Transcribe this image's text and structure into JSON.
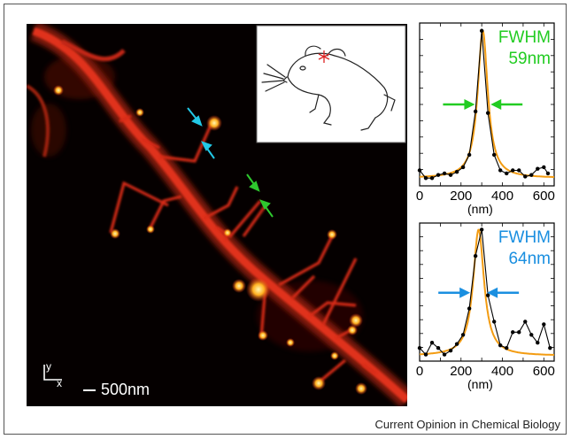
{
  "figure": {
    "scale_bar_label": "500nm",
    "axis_y_label": "y",
    "axis_x_label": "x",
    "credit": "Current Opinion in Chemical Biology"
  },
  "colors": {
    "fit": "#f39c12",
    "data": "#000000",
    "fwhm_green": "#22cc22",
    "fwhm_blue": "#1a8fe0",
    "arrow_cyan": "#22c8e6",
    "arrow_green": "#2ec82e",
    "micrograph_background": "#050000",
    "dendrite_glow": "#e0301c"
  },
  "chart_data": [
    {
      "type": "line",
      "xlabel": "(nm)",
      "ylabel": "",
      "xlim": [
        0,
        650
      ],
      "ylim": [
        0,
        1.05
      ],
      "xticks": [
        0,
        200,
        400,
        600
      ],
      "annotation_title": "FWHM",
      "annotation_value": "59nm",
      "annotation_color": "#22cc22",
      "series": [
        {
          "kind": "data",
          "x": [
            0,
            30,
            60,
            90,
            120,
            150,
            180,
            210,
            240,
            270,
            300,
            330,
            360,
            390,
            420,
            450,
            480,
            510,
            540,
            570,
            600,
            620
          ],
          "y": [
            0.1,
            0.05,
            0.05,
            0.07,
            0.08,
            0.07,
            0.09,
            0.12,
            0.2,
            0.48,
            1.0,
            0.47,
            0.2,
            0.1,
            0.08,
            0.1,
            0.1,
            0.06,
            0.07,
            0.11,
            0.12,
            0.08
          ]
        },
        {
          "kind": "fit",
          "center": 305,
          "fwhm": 59,
          "amplitude": 0.95,
          "baseline": 0.05
        }
      ]
    },
    {
      "type": "line",
      "xlabel": "(nm)",
      "ylabel": "",
      "xlim": [
        0,
        650
      ],
      "ylim": [
        0,
        1.05
      ],
      "xticks": [
        0,
        200,
        400,
        600
      ],
      "annotation_title": "FWHM",
      "annotation_value": "64nm",
      "annotation_color": "#1a8fe0",
      "series": [
        {
          "kind": "data",
          "x": [
            0,
            30,
            60,
            90,
            120,
            150,
            180,
            210,
            240,
            270,
            300,
            330,
            360,
            390,
            420,
            450,
            480,
            510,
            540,
            570,
            600,
            630
          ],
          "y": [
            0.1,
            0.05,
            0.14,
            0.1,
            0.05,
            0.08,
            0.13,
            0.2,
            0.4,
            0.8,
            1.0,
            0.5,
            0.3,
            0.12,
            0.1,
            0.22,
            0.22,
            0.3,
            0.2,
            0.14,
            0.28,
            0.1
          ]
        },
        {
          "kind": "fit",
          "center": 285,
          "fwhm": 64,
          "amplitude": 0.96,
          "baseline": 0.04
        }
      ]
    }
  ]
}
